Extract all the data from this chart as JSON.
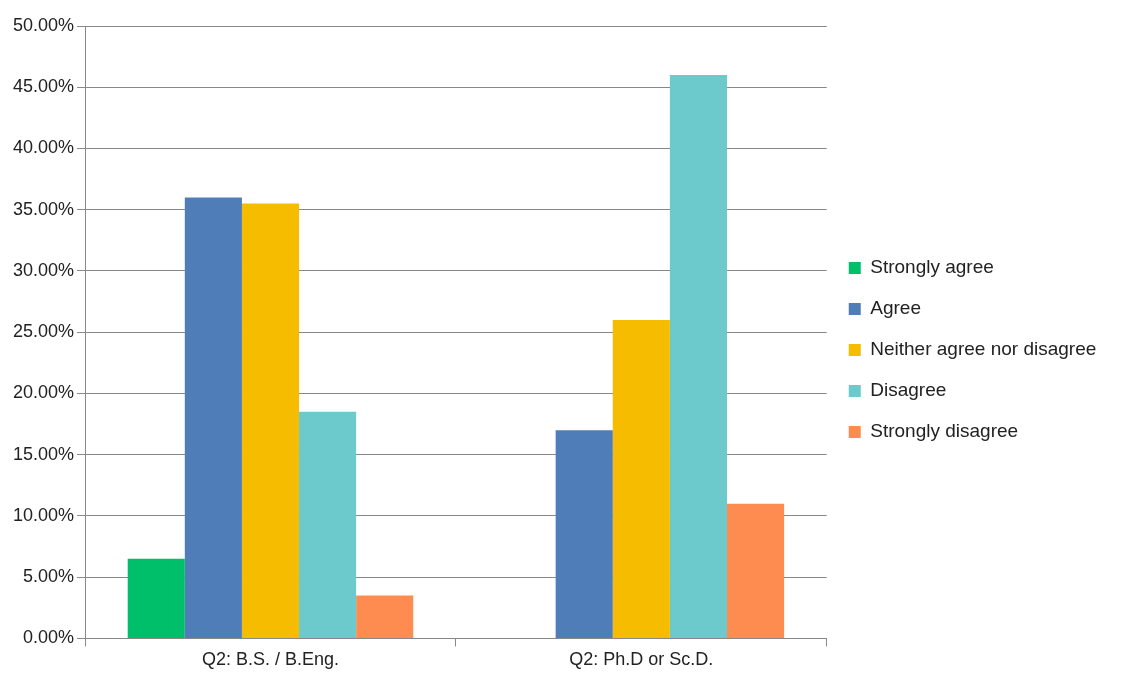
{
  "chart_data": {
    "type": "bar",
    "categories": [
      "Q2: B.S. / B.Eng.",
      "Q2: Ph.D or Sc.D."
    ],
    "series": [
      {
        "name": "Strongly agree",
        "color": "#00bf6b",
        "values": [
          6.5,
          0
        ]
      },
      {
        "name": "Agree",
        "color": "#4f7db8",
        "values": [
          36,
          17
        ]
      },
      {
        "name": "Neither agree nor disagree",
        "color": "#f6bc00",
        "values": [
          35.5,
          26
        ]
      },
      {
        "name": "Disagree",
        "color": "#6ccacc",
        "values": [
          18.5,
          46
        ]
      },
      {
        "name": "Strongly disagree",
        "color": "#fe8b50",
        "values": [
          3.5,
          11
        ]
      }
    ],
    "ylim": [
      0,
      50
    ],
    "yticks": [
      {
        "value": 0,
        "label": "0.00%"
      },
      {
        "value": 5,
        "label": "5.00%"
      },
      {
        "value": 10,
        "label": "10.00%"
      },
      {
        "value": 15,
        "label": "15.00%"
      },
      {
        "value": 20,
        "label": "20.00%"
      },
      {
        "value": 25,
        "label": "25.00%"
      },
      {
        "value": 30,
        "label": "30.00%"
      },
      {
        "value": 35,
        "label": "35.00%"
      },
      {
        "value": 40,
        "label": "40.00%"
      },
      {
        "value": 45,
        "label": "45.00%"
      },
      {
        "value": 50,
        "label": "50.00%"
      }
    ],
    "grid": "y",
    "legend": "right"
  }
}
